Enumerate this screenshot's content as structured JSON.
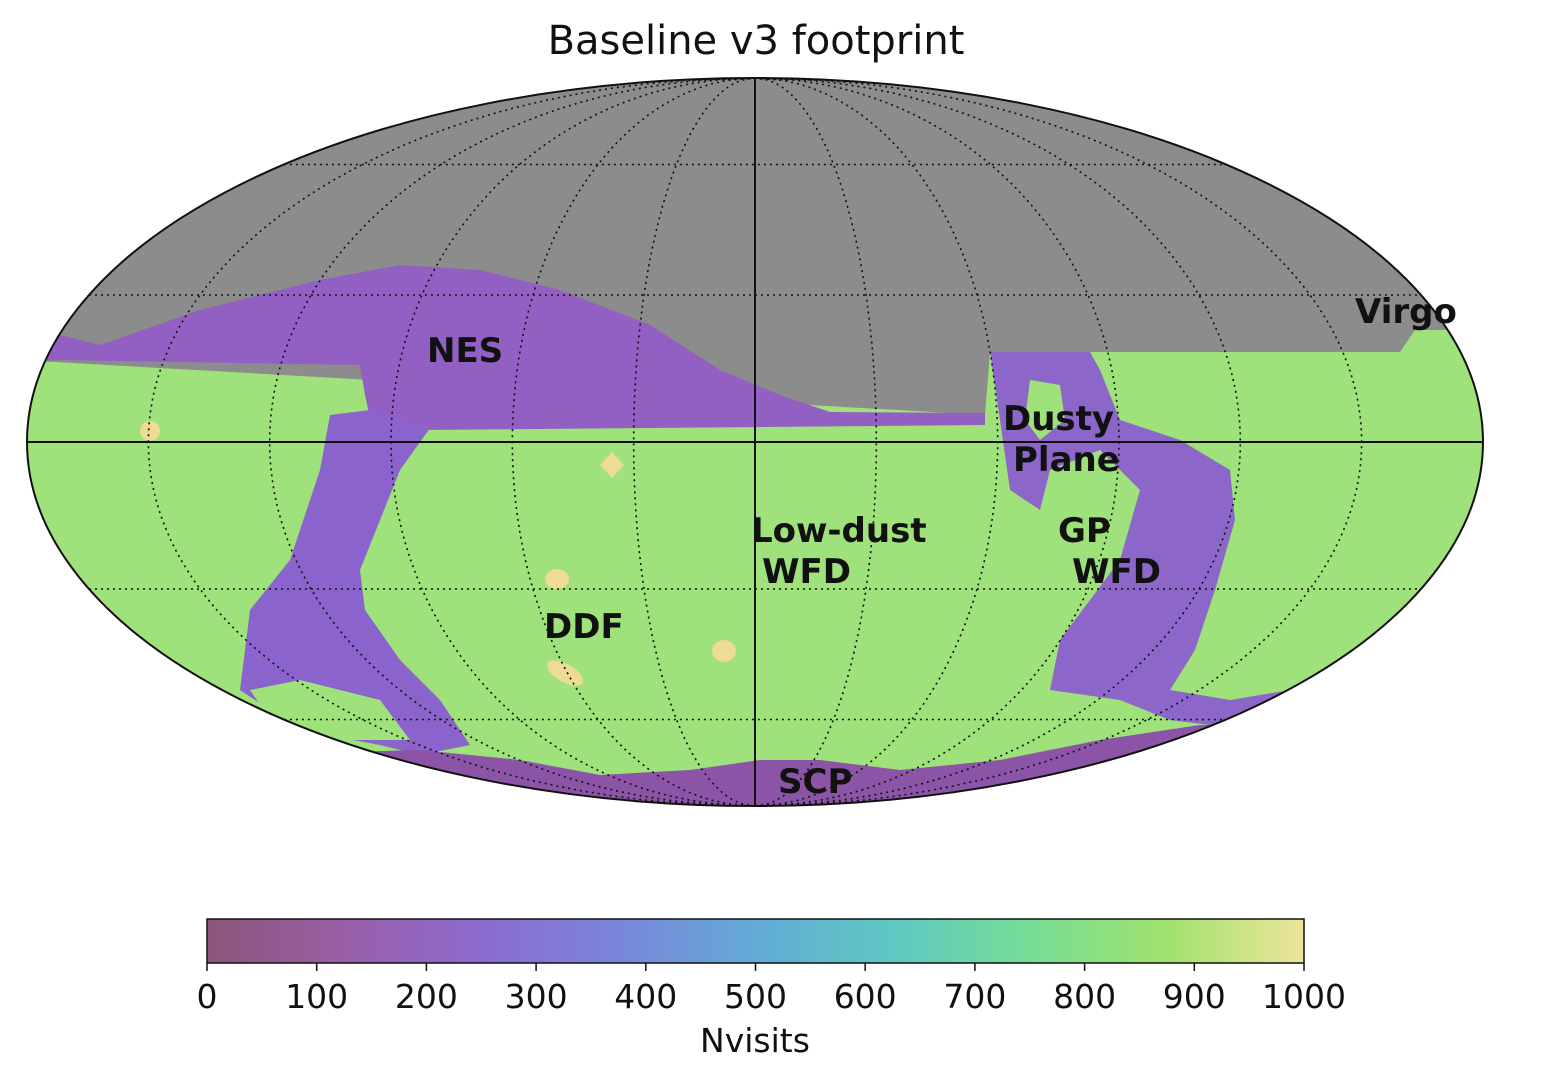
{
  "title": "Baseline v3 footprint",
  "region_labels": [
    {
      "id": "nes",
      "lines": [
        "NES"
      ]
    },
    {
      "id": "virgo",
      "lines": [
        "Virgo"
      ]
    },
    {
      "id": "dusty-plane",
      "lines": [
        "Dusty",
        "Plane"
      ]
    },
    {
      "id": "low-dust-wfd",
      "lines": [
        "Low-dust",
        "WFD"
      ]
    },
    {
      "id": "gp-wfd",
      "lines": [
        "GP",
        "WFD"
      ]
    },
    {
      "id": "ddf",
      "lines": [
        "DDF"
      ]
    },
    {
      "id": "scp",
      "lines": [
        "SCP"
      ]
    }
  ],
  "colors": {
    "unobserved": "#8c8c8c",
    "low_dust_wfd": "#9fe17a",
    "dusty_plane": "#8c66c8",
    "nes": "#9160c2",
    "scp": "#8c54a6",
    "ddf": "#eedb96"
  },
  "colorbar": {
    "label": "Nvisits",
    "min": 0,
    "max": 1000,
    "ticks": [
      "0",
      "100",
      "200",
      "300",
      "400",
      "500",
      "600",
      "700",
      "800",
      "900",
      "1000"
    ],
    "colors": [
      "#8a5677",
      "#9a5ea8",
      "#8c6bce",
      "#7a86da",
      "#62abd6",
      "#5ec8c2",
      "#76dd95",
      "#a0e26e",
      "#ede59a"
    ]
  },
  "chart_data": {
    "type": "heatmap",
    "projection": "mollweide",
    "title": "Baseline v3 footprint",
    "colorbar_label": "Nvisits",
    "colorbar_range": [
      0,
      1000
    ],
    "grid": true,
    "regions": [
      {
        "name": "Low-dust WFD",
        "approx_nvisits": 830
      },
      {
        "name": "NES",
        "approx_nvisits": 250
      },
      {
        "name": "Dusty Plane",
        "approx_nvisits": 250
      },
      {
        "name": "GP WFD",
        "approx_nvisits": 830
      },
      {
        "name": "SCP",
        "approx_nvisits": 150
      },
      {
        "name": "DDF",
        "approx_nvisits": 980
      },
      {
        "name": "Virgo",
        "approx_nvisits": 830
      }
    ]
  }
}
